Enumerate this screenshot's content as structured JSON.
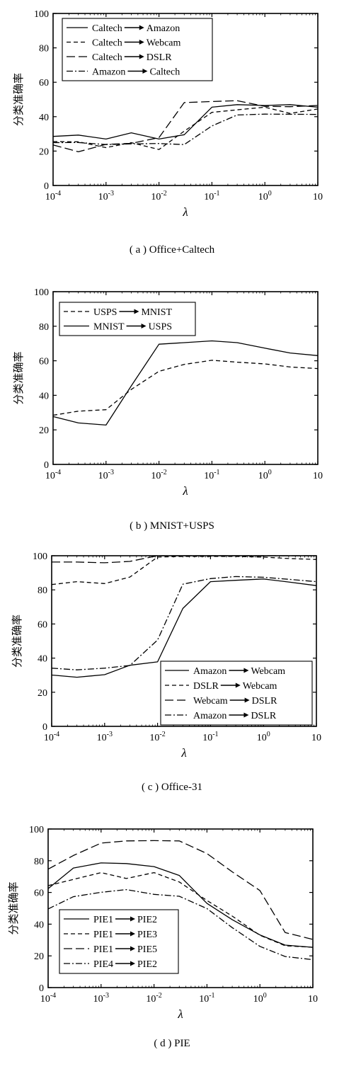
{
  "chart_data": [
    {
      "type": "line",
      "caption": "( a ) Office+Caltech",
      "xlabel": "λ",
      "ylabel": "分类准确率",
      "x_scale": "log",
      "x_ticks": [
        {
          "base": "10",
          "exp": "-4"
        },
        {
          "base": "10",
          "exp": "-3"
        },
        {
          "base": "10",
          "exp": "-2"
        },
        {
          "base": "10",
          "exp": "-1"
        },
        {
          "base": "10",
          "exp": "0"
        },
        {
          "base": "10",
          "exp": ""
        }
      ],
      "y_ticks": [
        "0",
        "20",
        "40",
        "60",
        "80",
        "100"
      ],
      "xlim": [
        0.0001,
        10
      ],
      "ylim": [
        0,
        100
      ],
      "legend_position": "top-left",
      "series": [
        {
          "source": "Caltech",
          "target": "Amazon",
          "style": "solid",
          "x": [
            0.0001,
            0.0003,
            0.001,
            0.003,
            0.01,
            0.03,
            0.1,
            0.3,
            1,
            3,
            10
          ],
          "y": [
            28.5,
            29.3,
            27.0,
            30.6,
            27.0,
            29.5,
            45.5,
            47.0,
            46.5,
            47.0,
            45.5
          ]
        },
        {
          "source": "Caltech",
          "target": "Webcam",
          "style": "dashed",
          "x": [
            0.0001,
            0.0003,
            0.001,
            0.003,
            0.01,
            0.03,
            0.1,
            0.3,
            1,
            3,
            10
          ],
          "y": [
            25.5,
            25.4,
            22.0,
            24.9,
            20.9,
            31.6,
            42.5,
            44.0,
            45.5,
            41.9,
            44.5
          ]
        },
        {
          "source": "Caltech",
          "target": "DSLR",
          "style": "longdash",
          "x": [
            0.0001,
            0.0003,
            0.001,
            0.003,
            0.01,
            0.03,
            0.1,
            0.3,
            1,
            3,
            10
          ],
          "y": [
            23.6,
            19.6,
            23.9,
            24.5,
            27.8,
            48.2,
            48.8,
            49.3,
            46.0,
            45.8,
            46.5
          ]
        },
        {
          "source": "Amazon",
          "target": "Caltech",
          "style": "dashdot",
          "x": [
            0.0001,
            0.0003,
            0.001,
            0.003,
            0.01,
            0.03,
            0.1,
            0.3,
            1,
            3,
            10
          ],
          "y": [
            24.9,
            25.0,
            23.8,
            24.2,
            24.4,
            23.8,
            34.6,
            41.0,
            41.5,
            41.4,
            41.3
          ]
        }
      ]
    },
    {
      "type": "line",
      "caption": "( b ) MNIST+USPS",
      "xlabel": "λ",
      "ylabel": "分类准确率",
      "x_scale": "log",
      "x_ticks": [
        {
          "base": "10",
          "exp": "-4"
        },
        {
          "base": "10",
          "exp": "-3"
        },
        {
          "base": "10",
          "exp": "-2"
        },
        {
          "base": "10",
          "exp": "-1"
        },
        {
          "base": "10",
          "exp": "0"
        },
        {
          "base": "10",
          "exp": ""
        }
      ],
      "y_ticks": [
        "0",
        "20",
        "40",
        "60",
        "80",
        "100"
      ],
      "xlim": [
        0.0001,
        10
      ],
      "ylim": [
        0,
        100
      ],
      "legend_position": "top-left",
      "series": [
        {
          "source": "USPS",
          "target": "MNIST",
          "style": "dashed",
          "x": [
            0.0001,
            0.0003,
            0.001,
            0.003,
            0.01,
            0.03,
            0.1,
            0.3,
            1,
            3,
            10
          ],
          "y": [
            28.5,
            30.8,
            31.7,
            43.4,
            53.9,
            57.9,
            60.3,
            59.2,
            58.2,
            56.4,
            55.5
          ]
        },
        {
          "source": "MNIST",
          "target": "USPS",
          "style": "solid",
          "x": [
            0.0001,
            0.0003,
            0.001,
            0.003,
            0.01,
            0.03,
            0.1,
            0.3,
            1,
            3,
            10
          ],
          "y": [
            27.7,
            24.0,
            22.8,
            45.5,
            69.6,
            70.5,
            71.5,
            70.5,
            67.3,
            64.5,
            63.0
          ]
        }
      ]
    },
    {
      "type": "line",
      "caption": "( c ) Office-31",
      "xlabel": "λ",
      "ylabel": "分类准确率",
      "x_scale": "log",
      "x_ticks": [
        {
          "base": "10",
          "exp": "-4"
        },
        {
          "base": "10",
          "exp": "-3"
        },
        {
          "base": "10",
          "exp": "-2"
        },
        {
          "base": "10",
          "exp": "-1"
        },
        {
          "base": "10",
          "exp": "0"
        },
        {
          "base": "10",
          "exp": ""
        }
      ],
      "y_ticks": [
        "0",
        "20",
        "40",
        "60",
        "80",
        "100"
      ],
      "xlim": [
        0.0001,
        10
      ],
      "ylim": [
        0,
        100
      ],
      "legend_position": "bottom-right",
      "series": [
        {
          "source": "Amazon",
          "target": "Webcam",
          "style": "solid",
          "x": [
            0.0001,
            0.0003,
            0.001,
            0.003,
            0.01,
            0.03,
            0.1,
            0.3,
            1,
            3,
            10
          ],
          "y": [
            30.1,
            28.8,
            30.3,
            35.8,
            37.8,
            69.1,
            84.8,
            85.6,
            86.4,
            84.6,
            82.5
          ]
        },
        {
          "source": "DSLR",
          "target": "Webcam",
          "style": "dashed",
          "x": [
            0.0001,
            0.0003,
            0.001,
            0.003,
            0.01,
            0.03,
            0.1,
            0.3,
            1,
            3,
            10
          ],
          "y": [
            83.1,
            84.8,
            83.7,
            87.5,
            99.2,
            99.6,
            99.6,
            99.6,
            99.2,
            98.4,
            97.8
          ]
        },
        {
          "source": "Webcam",
          "target": "DSLR",
          "style": "longdash",
          "x": [
            0.0001,
            0.0003,
            0.001,
            0.003,
            0.01,
            0.03,
            0.1,
            0.3,
            1,
            3,
            10
          ],
          "y": [
            96.3,
            96.3,
            95.9,
            96.7,
            100.0,
            100.0,
            100.0,
            100.0,
            100.0,
            100.0,
            100.0
          ]
        },
        {
          "source": "Amazon",
          "target": "DSLR",
          "style": "dashdot",
          "x": [
            0.0001,
            0.0003,
            0.001,
            0.003,
            0.01,
            0.03,
            0.1,
            0.3,
            1,
            3,
            10
          ],
          "y": [
            34.1,
            33.1,
            34.1,
            35.7,
            50.6,
            83.3,
            86.6,
            87.8,
            87.4,
            86.2,
            84.8
          ]
        }
      ]
    },
    {
      "type": "line",
      "caption": "( d ) PIE",
      "xlabel": "λ",
      "ylabel": "分类准确率",
      "x_scale": "log",
      "x_ticks": [
        {
          "base": "10",
          "exp": "-4"
        },
        {
          "base": "10",
          "exp": "-3"
        },
        {
          "base": "10",
          "exp": "-2"
        },
        {
          "base": "10",
          "exp": "-1"
        },
        {
          "base": "10",
          "exp": "0"
        },
        {
          "base": "10",
          "exp": ""
        }
      ],
      "y_ticks": [
        "0",
        "20",
        "40",
        "60",
        "80",
        "100"
      ],
      "xlim": [
        0.0001,
        10
      ],
      "ylim": [
        0,
        100
      ],
      "legend_position": "bottom-left",
      "series": [
        {
          "source": "PIE1",
          "target": "PIE2",
          "style": "solid",
          "x": [
            0.0001,
            0.0003,
            0.001,
            0.003,
            0.01,
            0.03,
            0.1,
            0.3,
            1,
            3,
            10
          ],
          "y": [
            62.4,
            75.4,
            78.6,
            78.2,
            76.3,
            70.7,
            53.1,
            42.8,
            33.2,
            26.8,
            25.4
          ]
        },
        {
          "source": "PIE1",
          "target": "PIE3",
          "style": "dashed",
          "x": [
            0.0001,
            0.0003,
            0.001,
            0.003,
            0.01,
            0.03,
            0.1,
            0.3,
            1,
            3,
            10
          ],
          "y": [
            64.3,
            68.2,
            72.5,
            68.8,
            72.5,
            66.6,
            54.9,
            45.1,
            33.0,
            26.4,
            25.4
          ]
        },
        {
          "source": "PIE1",
          "target": "PIE5",
          "style": "longdash",
          "x": [
            0.0001,
            0.0003,
            0.001,
            0.003,
            0.01,
            0.03,
            0.1,
            0.3,
            1,
            3,
            10
          ],
          "y": [
            74.7,
            83.3,
            91.1,
            92.5,
            92.7,
            92.5,
            84.5,
            73.0,
            61.2,
            34.7,
            30.4
          ]
        },
        {
          "source": "PIE4",
          "target": "PIE2",
          "style": "dashdot",
          "x": [
            0.0001,
            0.0003,
            0.001,
            0.003,
            0.01,
            0.03,
            0.1,
            0.3,
            1,
            3,
            10
          ],
          "y": [
            49.6,
            57.3,
            60.1,
            61.8,
            58.8,
            57.6,
            49.8,
            37.8,
            26.0,
            19.6,
            17.6
          ]
        }
      ]
    }
  ]
}
